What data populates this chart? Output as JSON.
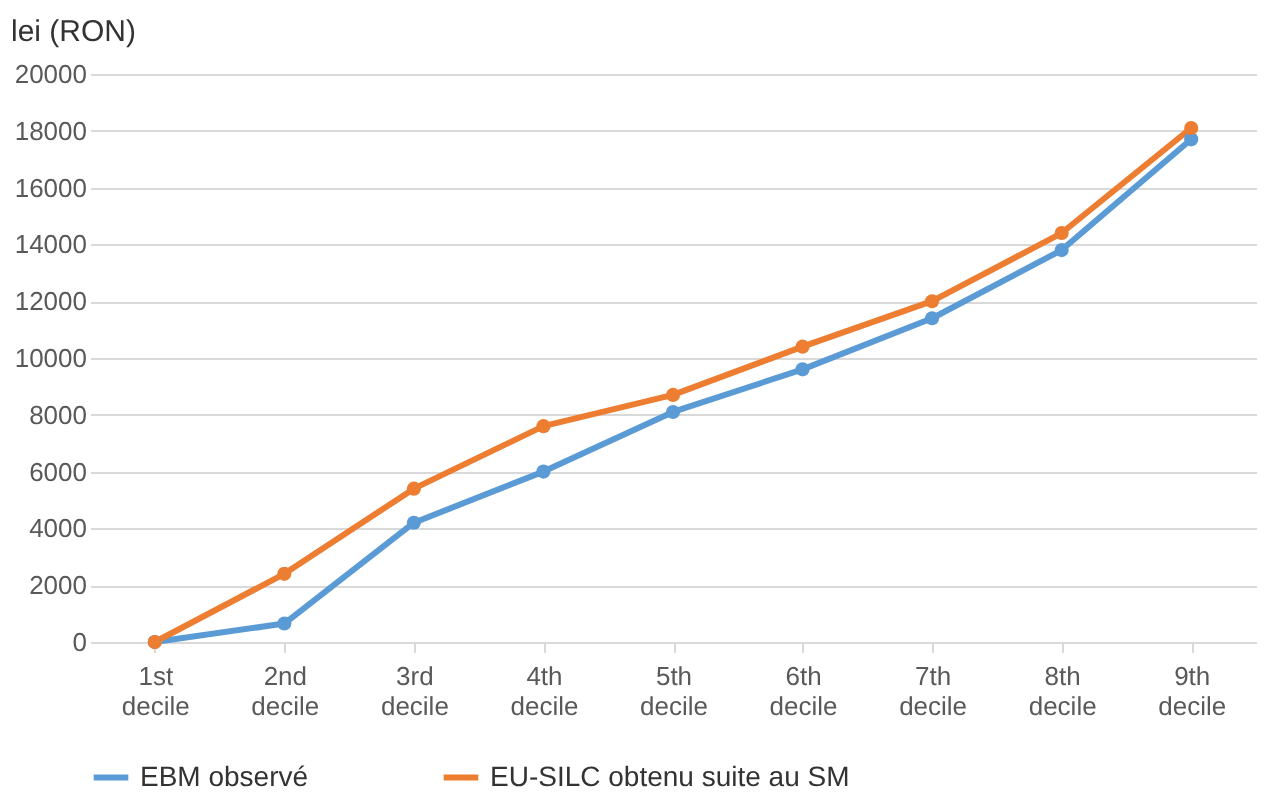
{
  "chart_data": {
    "type": "line",
    "ylabel": "lei (RON)",
    "categories": [
      "1st decile",
      "2nd decile",
      "3rd decile",
      "4th decile",
      "5th decile",
      "6th decile",
      "7th decile",
      "8th decile",
      "9th decile"
    ],
    "series": [
      {
        "name": "EBM observé",
        "color": "#5b9bd5",
        "values": [
          0,
          650,
          4200,
          6000,
          8100,
          9600,
          11400,
          13800,
          17700
        ]
      },
      {
        "name": "EU-SILC obtenu suite au SM",
        "color": "#ed7d31",
        "values": [
          0,
          2400,
          5400,
          7600,
          8700,
          10400,
          12000,
          14400,
          18100
        ]
      }
    ],
    "ylim": [
      0,
      20000
    ],
    "yticks": [
      0,
      2000,
      4000,
      6000,
      8000,
      10000,
      12000,
      14000,
      16000,
      18000,
      20000
    ],
    "grid": "y",
    "legend": "bottom",
    "marker": "circle",
    "line_style": "solid"
  }
}
